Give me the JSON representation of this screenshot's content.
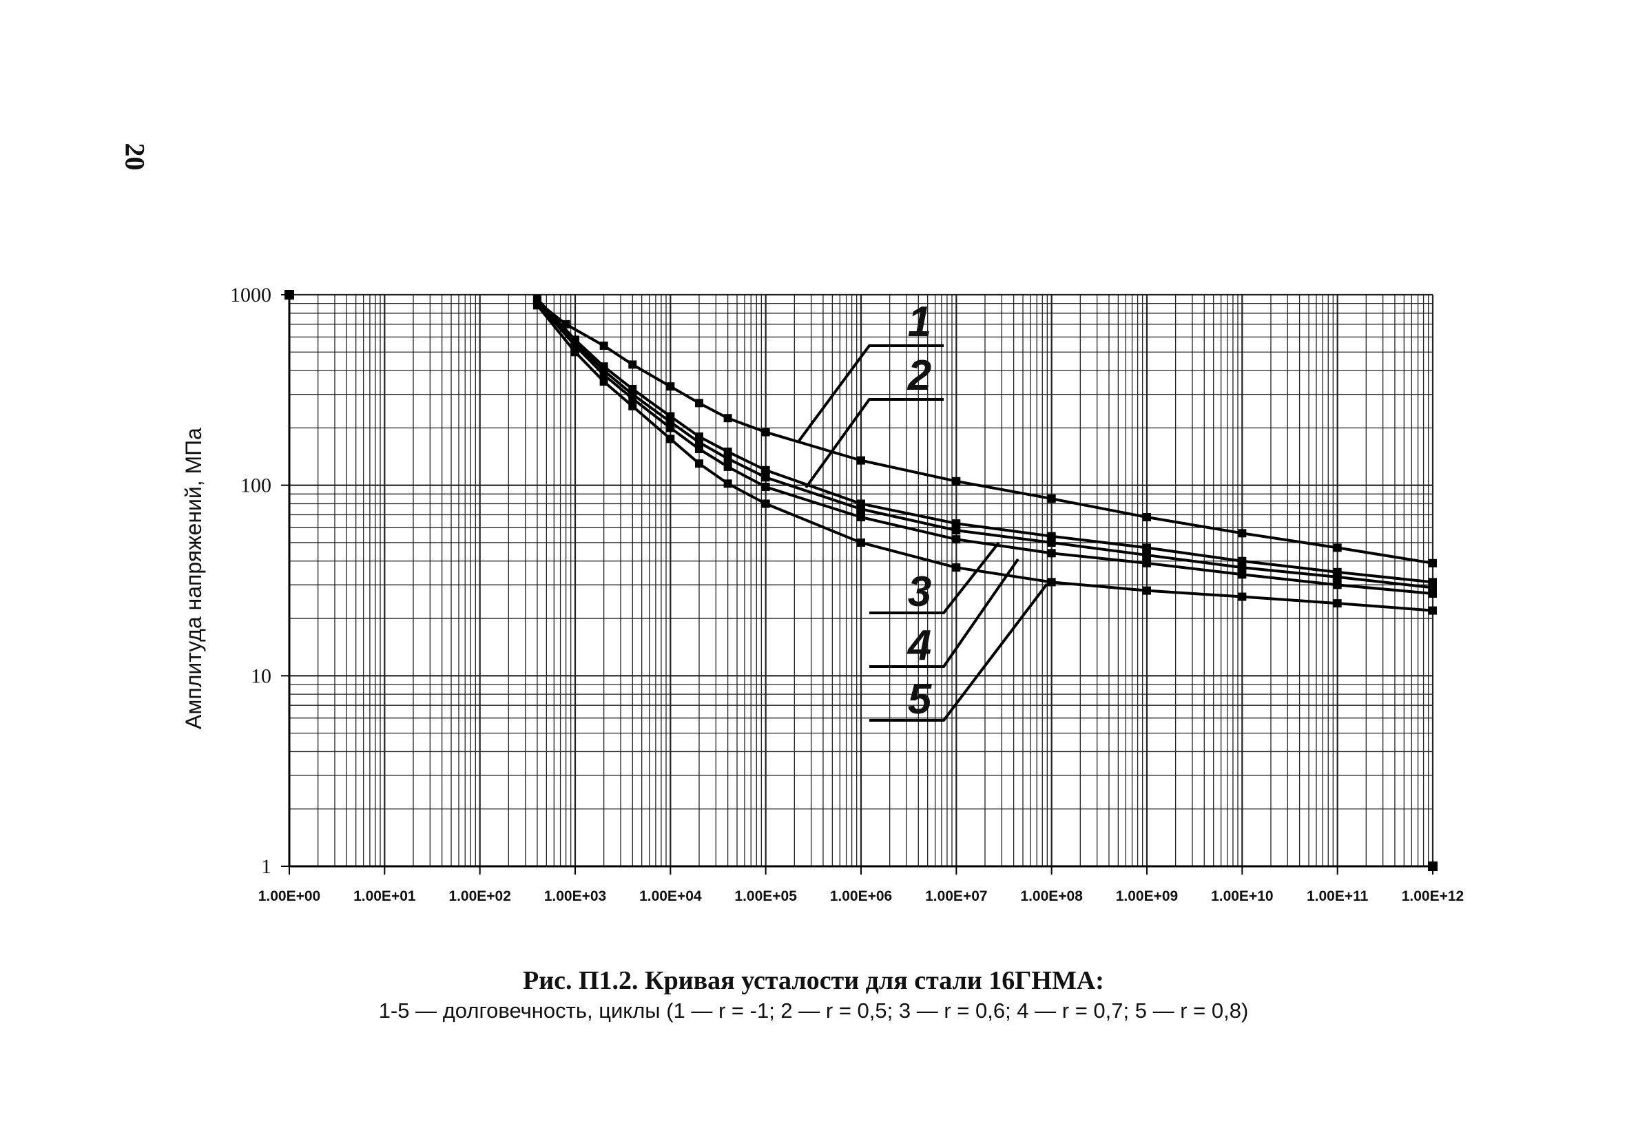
{
  "page_number": "20",
  "caption": {
    "title": "Рис. П1.2. Кривая усталости для стали 16ГНМА:",
    "subtitle": "1-5 — долговечность, циклы (1 — r = -1; 2 — r = 0,5; 3 — r = 0,6; 4 — r = 0,7; 5 — r = 0,8)"
  },
  "chart_data": {
    "type": "line",
    "title": "",
    "xlabel": "",
    "ylabel": "Амплитуда напряжений, МПа",
    "x_scale": "log",
    "y_scale": "log",
    "xlim": [
      1,
      1000000000000
    ],
    "ylim": [
      1,
      1000
    ],
    "grid": true,
    "x_tick_labels": [
      "1.00E+00",
      "1.00E+01",
      "1.00E+02",
      "1.00E+03",
      "1.00E+04",
      "1.00E+05",
      "1.00E+06",
      "1.00E+07",
      "1.00E+08",
      "1.00E+09",
      "1.00E+10",
      "1.00E+11",
      "1.00E+12"
    ],
    "y_tick_labels": [
      "1000",
      "100",
      "10",
      "1"
    ],
    "y_tick_values": [
      1000,
      100,
      10,
      1
    ],
    "curve_labels": [
      "1",
      "2",
      "3",
      "4",
      "5"
    ],
    "series": [
      {
        "x": [
          400,
          800,
          2000,
          4000,
          10000,
          20000,
          40000,
          100000,
          1000000,
          10000000,
          100000000,
          1000000000,
          10000000000,
          100000000000,
          1000000000000
        ],
        "y": [
          920,
          700,
          540,
          430,
          330,
          270,
          225,
          190,
          135,
          105,
          85,
          68,
          56,
          47,
          39
        ]
      },
      {
        "x": [
          400,
          1000,
          2000,
          4000,
          10000,
          20000,
          40000,
          100000,
          1000000,
          10000000,
          100000000,
          1000000000,
          10000000000,
          100000000000,
          1000000000000
        ],
        "y": [
          950,
          580,
          420,
          320,
          230,
          180,
          150,
          120,
          80,
          63,
          54,
          47,
          40,
          35,
          31
        ]
      },
      {
        "x": [
          400,
          1000,
          2000,
          4000,
          10000,
          20000,
          40000,
          100000,
          1000000,
          10000000,
          100000000,
          1000000000,
          10000000000,
          100000000000,
          1000000000000
        ],
        "y": [
          930,
          560,
          400,
          300,
          215,
          168,
          138,
          110,
          75,
          58,
          50,
          43,
          37,
          33,
          29
        ]
      },
      {
        "x": [
          400,
          1000,
          2000,
          4000,
          10000,
          20000,
          40000,
          100000,
          1000000,
          10000000,
          100000000,
          1000000000,
          10000000000,
          100000000000,
          1000000000000
        ],
        "y": [
          910,
          540,
          380,
          285,
          200,
          155,
          125,
          98,
          68,
          52,
          44,
          39,
          34,
          30,
          27
        ]
      },
      {
        "x": [
          400,
          1000,
          2000,
          4000,
          10000,
          20000,
          40000,
          100000,
          1000000,
          10000000,
          100000000,
          1000000000,
          10000000000,
          100000000000,
          1000000000000
        ],
        "y": [
          880,
          500,
          350,
          260,
          175,
          130,
          102,
          80,
          50,
          37,
          31,
          28,
          26,
          24,
          22
        ]
      }
    ]
  }
}
